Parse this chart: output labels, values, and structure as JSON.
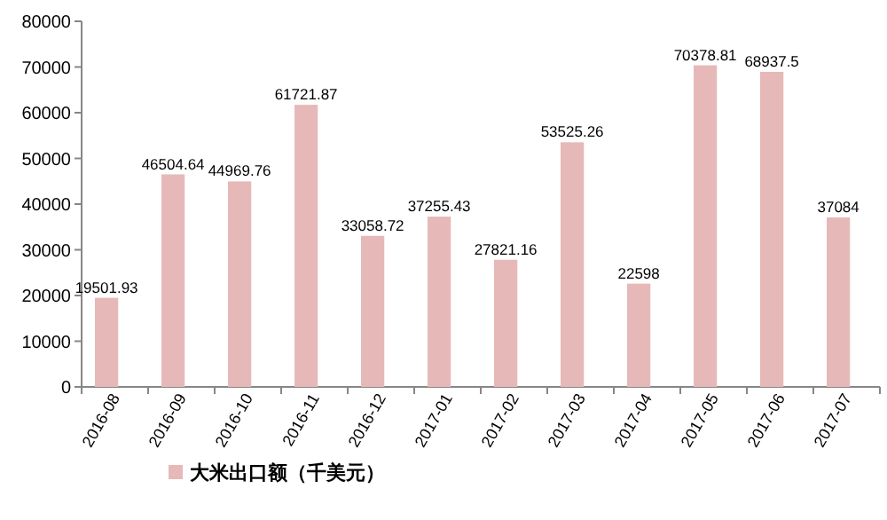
{
  "chart_data": {
    "type": "bar",
    "categories": [
      "2016-08",
      "2016-09",
      "2016-10",
      "2016-11",
      "2016-12",
      "2017-01",
      "2017-02",
      "2017-03",
      "2017-04",
      "2017-05",
      "2017-06",
      "2017-07"
    ],
    "series": [
      {
        "name": "大米出口额（千美元）",
        "color": "#e6b9b8",
        "values": [
          19501.93,
          46504.64,
          44969.76,
          61721.87,
          33058.72,
          37255.43,
          27821.16,
          53525.26,
          22598,
          70378.81,
          68937.5,
          37084
        ]
      }
    ],
    "ylim": [
      0,
      80000
    ],
    "yticks": [
      0,
      10000,
      20000,
      30000,
      40000,
      50000,
      60000,
      70000,
      80000
    ],
    "data_labels": true,
    "legend": "bottom left"
  }
}
